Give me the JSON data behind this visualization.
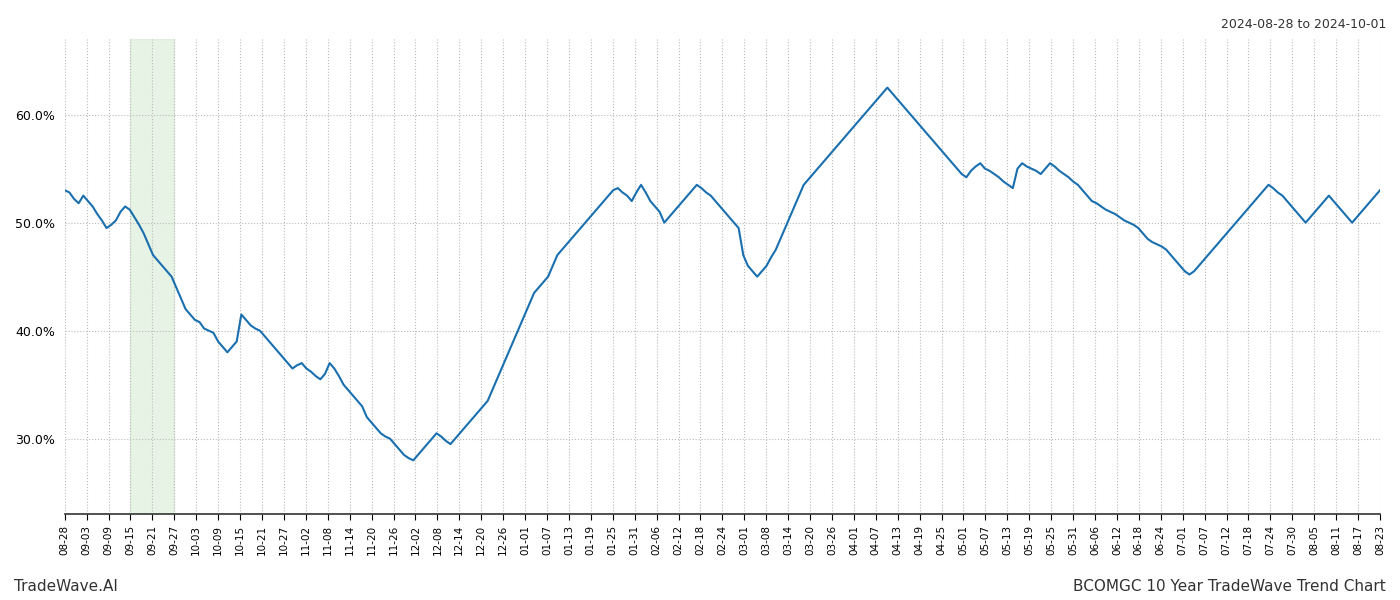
{
  "title_top_right": "2024-08-28 to 2024-10-01",
  "footer_left": "TradeWave.AI",
  "footer_right": "BCOMGC 10 Year TradeWave Trend Chart",
  "line_color": "#1a6faf",
  "line_width": 1.5,
  "background_color": "#ffffff",
  "grid_color": "#bbbbbb",
  "grid_linestyle": ":",
  "shade_color": "#d4ead0",
  "shade_alpha": 0.55,
  "ylim": [
    23.0,
    67.0
  ],
  "yticks": [
    30.0,
    40.0,
    50.0,
    60.0
  ],
  "x_labels": [
    "08-28",
    "09-03",
    "09-09",
    "09-15",
    "09-21",
    "09-27",
    "10-03",
    "10-09",
    "10-15",
    "10-21",
    "10-27",
    "11-02",
    "11-08",
    "11-14",
    "11-20",
    "11-26",
    "12-02",
    "12-08",
    "12-14",
    "12-20",
    "12-26",
    "01-01",
    "01-07",
    "01-13",
    "01-19",
    "01-25",
    "01-31",
    "02-06",
    "02-12",
    "02-18",
    "02-24",
    "03-01",
    "03-08",
    "03-14",
    "03-20",
    "03-26",
    "04-01",
    "04-07",
    "04-13",
    "04-19",
    "04-25",
    "05-01",
    "05-07",
    "05-13",
    "05-19",
    "05-25",
    "05-31",
    "06-06",
    "06-12",
    "06-18",
    "06-24",
    "07-01",
    "07-07",
    "07-12",
    "07-18",
    "07-24",
    "07-30",
    "08-05",
    "08-11",
    "08-17",
    "08-23"
  ],
  "values": [
    53.0,
    52.8,
    52.2,
    51.8,
    52.5,
    52.0,
    51.5,
    50.8,
    50.2,
    49.5,
    49.8,
    50.2,
    51.0,
    51.5,
    51.2,
    50.5,
    49.8,
    49.0,
    48.0,
    47.0,
    46.5,
    46.0,
    45.5,
    45.0,
    44.0,
    43.0,
    42.0,
    41.5,
    41.0,
    40.8,
    40.2,
    40.0,
    39.8,
    39.0,
    38.5,
    38.0,
    38.5,
    39.0,
    41.5,
    41.0,
    40.5,
    40.2,
    40.0,
    39.5,
    39.0,
    38.5,
    38.0,
    37.5,
    37.0,
    36.5,
    36.8,
    37.0,
    36.5,
    36.2,
    35.8,
    35.5,
    36.0,
    37.0,
    36.5,
    35.8,
    35.0,
    34.5,
    34.0,
    33.5,
    33.0,
    32.0,
    31.5,
    31.0,
    30.5,
    30.2,
    30.0,
    29.5,
    29.0,
    28.5,
    28.2,
    28.0,
    28.5,
    29.0,
    29.5,
    30.0,
    30.5,
    30.2,
    29.8,
    29.5,
    30.0,
    30.5,
    31.0,
    31.5,
    32.0,
    32.5,
    33.0,
    33.5,
    34.5,
    35.5,
    36.5,
    37.5,
    38.5,
    39.5,
    40.5,
    41.5,
    42.5,
    43.5,
    44.0,
    44.5,
    45.0,
    46.0,
    47.0,
    47.5,
    48.0,
    48.5,
    49.0,
    49.5,
    50.0,
    50.5,
    51.0,
    51.5,
    52.0,
    52.5,
    53.0,
    53.2,
    52.8,
    52.5,
    52.0,
    52.8,
    53.5,
    52.8,
    52.0,
    51.5,
    51.0,
    50.0,
    50.5,
    51.0,
    51.5,
    52.0,
    52.5,
    53.0,
    53.5,
    53.2,
    52.8,
    52.5,
    52.0,
    51.5,
    51.0,
    50.5,
    50.0,
    49.5,
    47.0,
    46.0,
    45.5,
    45.0,
    45.5,
    46.0,
    46.8,
    47.5,
    48.5,
    49.5,
    50.5,
    51.5,
    52.5,
    53.5,
    54.0,
    54.5,
    55.0,
    55.5,
    56.0,
    56.5,
    57.0,
    57.5,
    58.0,
    58.5,
    59.0,
    59.5,
    60.0,
    60.5,
    61.0,
    61.5,
    62.0,
    62.5,
    62.0,
    61.5,
    61.0,
    60.5,
    60.0,
    59.5,
    59.0,
    58.5,
    58.0,
    57.5,
    57.0,
    56.5,
    56.0,
    55.5,
    55.0,
    54.5,
    54.2,
    54.8,
    55.2,
    55.5,
    55.0,
    54.8,
    54.5,
    54.2,
    53.8,
    53.5,
    53.2,
    55.0,
    55.5,
    55.2,
    55.0,
    54.8,
    54.5,
    55.0,
    55.5,
    55.2,
    54.8,
    54.5,
    54.2,
    53.8,
    53.5,
    53.0,
    52.5,
    52.0,
    51.8,
    51.5,
    51.2,
    51.0,
    50.8,
    50.5,
    50.2,
    50.0,
    49.8,
    49.5,
    49.0,
    48.5,
    48.2,
    48.0,
    47.8,
    47.5,
    47.0,
    46.5,
    46.0,
    45.5,
    45.2,
    45.5,
    46.0,
    46.5,
    47.0,
    47.5,
    48.0,
    48.5,
    49.0,
    49.5,
    50.0,
    50.5,
    51.0,
    51.5,
    52.0,
    52.5,
    53.0,
    53.5,
    53.2,
    52.8,
    52.5,
    52.0,
    51.5,
    51.0,
    50.5,
    50.0,
    50.5,
    51.0,
    51.5,
    52.0,
    52.5,
    52.0,
    51.5,
    51.0,
    50.5,
    50.0,
    50.5,
    51.0,
    51.5,
    52.0,
    52.5,
    53.0
  ],
  "shade_start_label": "09-15",
  "shade_end_label": "09-27"
}
